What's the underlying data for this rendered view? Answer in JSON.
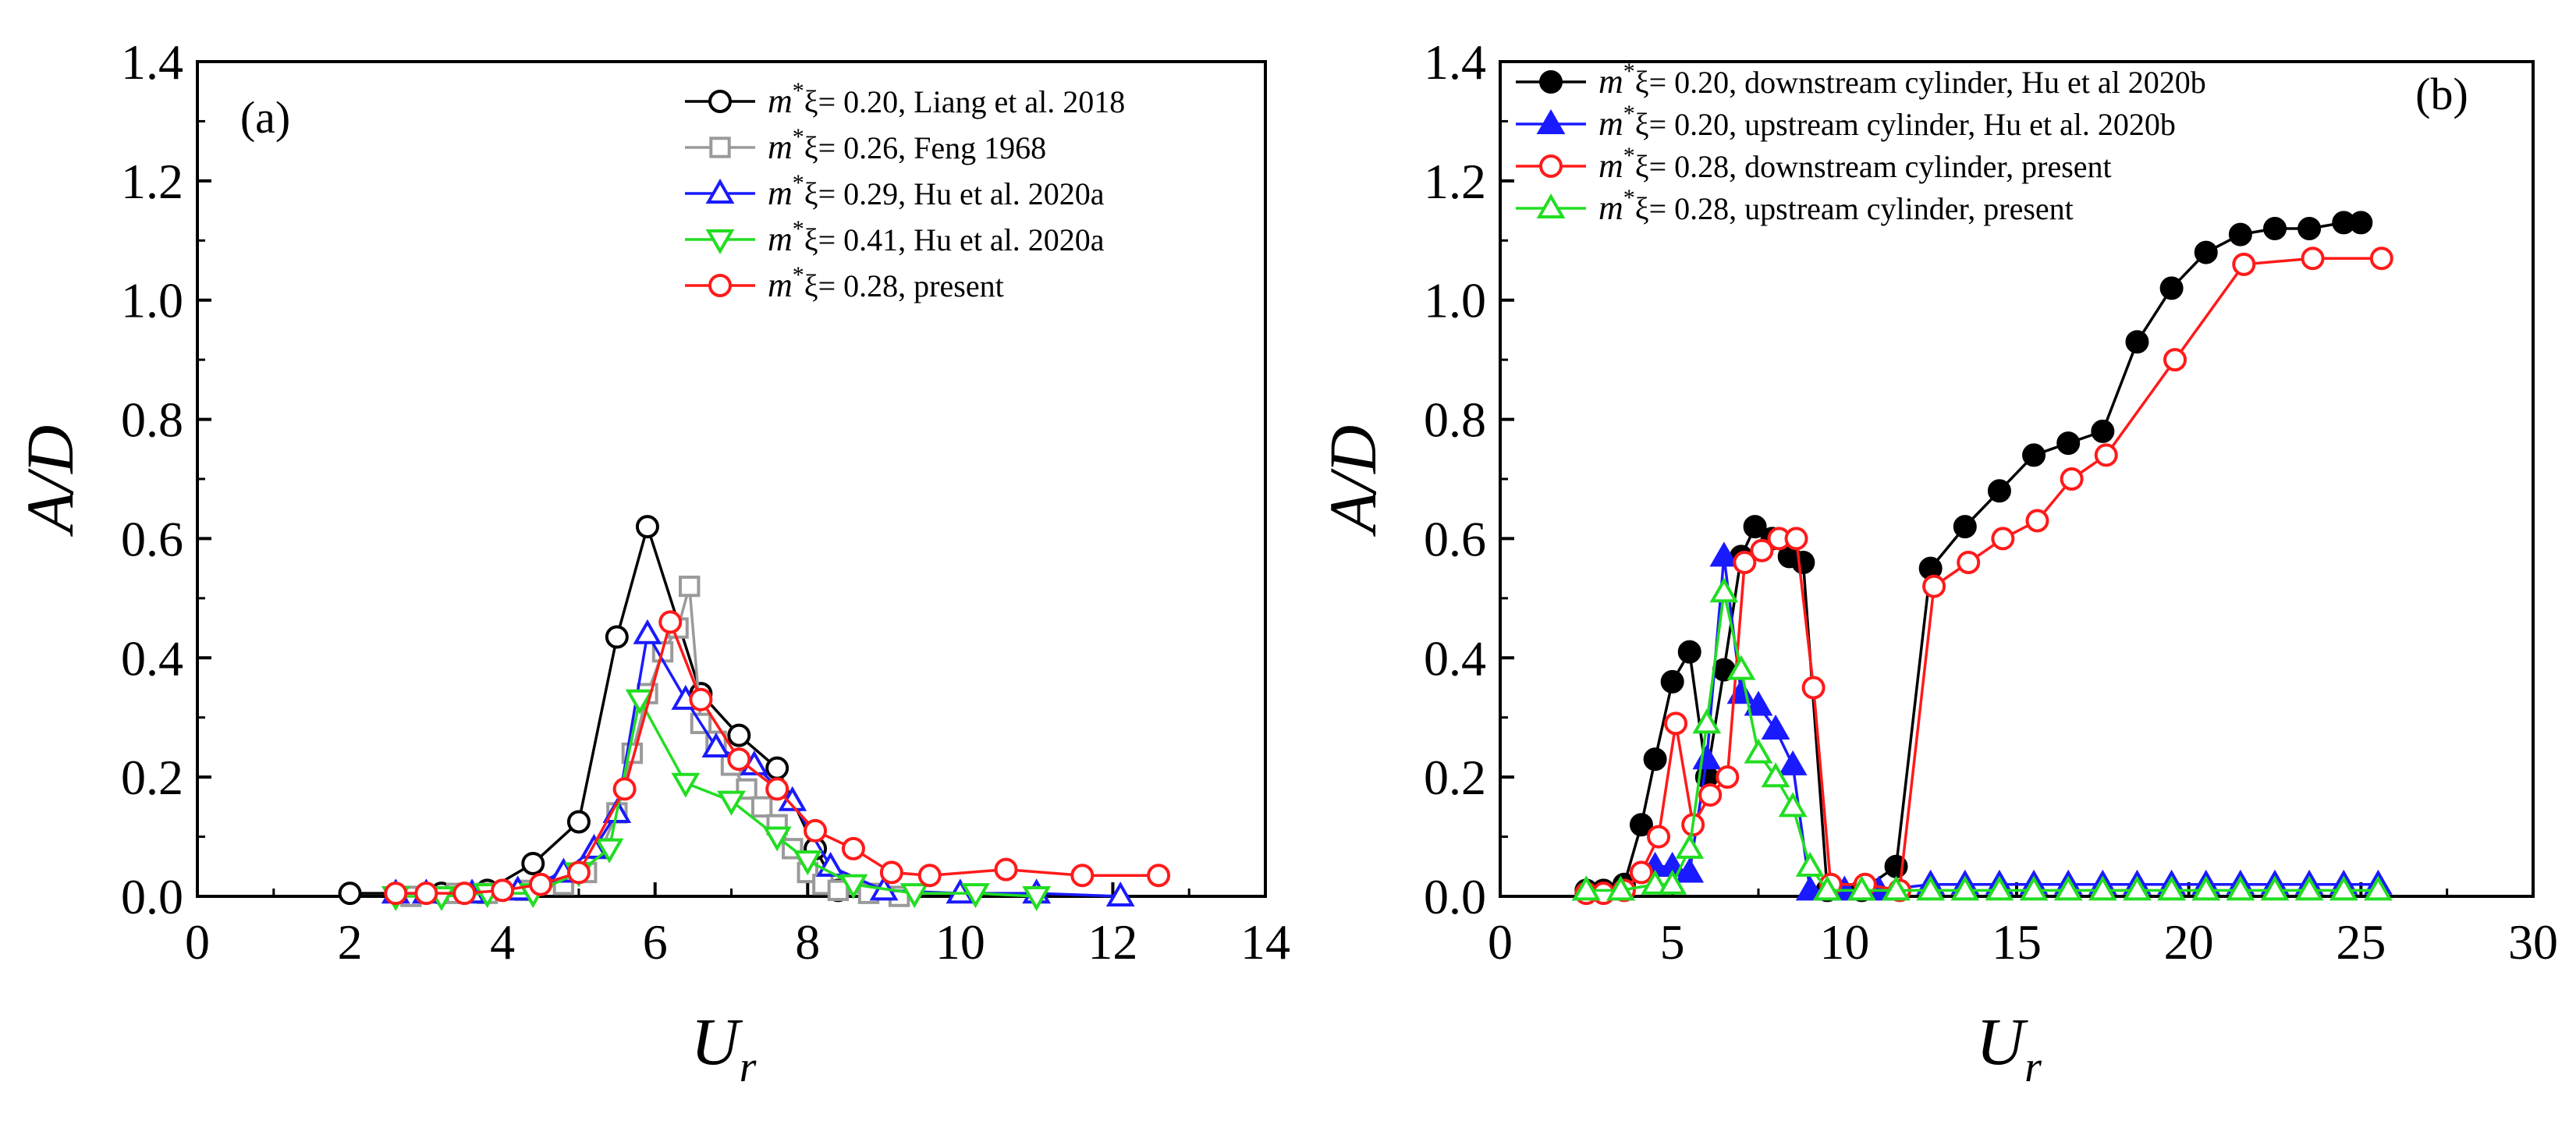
{
  "colors": {
    "black": "#000000",
    "gray": "#9a9a9a",
    "blue": "#1a1aff",
    "green": "#22dd22",
    "red": "#ff1a1a"
  },
  "chart_data": [
    {
      "type": "line",
      "panel_label": "(a)",
      "xlabel": "U",
      "xlabel_sub": "r",
      "ylabel": "A/D",
      "xlim": [
        0,
        14
      ],
      "ylim": [
        0,
        1.4
      ],
      "x_ticks": [
        "0",
        "2",
        "4",
        "6",
        "8",
        "10",
        "12",
        "14"
      ],
      "y_ticks": [
        "0.0",
        "0.2",
        "0.4",
        "0.6",
        "0.8",
        "1.0",
        "1.2",
        "1.4"
      ],
      "legend_position": "top-right",
      "series": [
        {
          "name": "m*ξ = 0.20, Liang et al. 2018",
          "legend_prefix": "m",
          "legend_sup": "*",
          "legend_label": "ξ= 0.20, Liang et al. 2018",
          "color": "#000000",
          "marker": "circle-open",
          "x": [
            2.0,
            3.2,
            3.8,
            4.4,
            5.0,
            5.5,
            5.9,
            6.6,
            7.1,
            7.6,
            8.1,
            8.4
          ],
          "y": [
            0.005,
            0.005,
            0.01,
            0.055,
            0.125,
            0.435,
            0.62,
            0.34,
            0.27,
            0.215,
            0.08,
            0.01
          ]
        },
        {
          "name": "m*ξ = 0.26, Feng 1968",
          "legend_prefix": "m",
          "legend_sup": "*",
          "legend_label": "ξ= 0.26, Feng 1968",
          "color": "#9a9a9a",
          "marker": "square-open",
          "x": [
            2.8,
            3.4,
            3.8,
            4.3,
            4.8,
            5.1,
            5.3,
            5.5,
            5.7,
            5.9,
            6.1,
            6.3,
            6.45,
            6.6,
            6.8,
            7.0,
            7.2,
            7.4,
            7.6,
            7.8,
            8.0,
            8.2,
            8.4,
            8.8,
            9.2
          ],
          "y": [
            0.0,
            0.005,
            0.005,
            0.01,
            0.02,
            0.04,
            0.08,
            0.14,
            0.24,
            0.34,
            0.41,
            0.45,
            0.52,
            0.29,
            0.26,
            0.22,
            0.18,
            0.15,
            0.12,
            0.08,
            0.04,
            0.02,
            0.01,
            0.005,
            0.0
          ]
        },
        {
          "name": "m*ξ = 0.29, Hu et al. 2020a",
          "legend_prefix": "m",
          "legend_sup": "*",
          "legend_label": "ξ= 0.29, Hu et al. 2020a",
          "color": "#1a1aff",
          "marker": "triangle-up-open",
          "x": [
            2.6,
            3.0,
            3.6,
            4.2,
            4.8,
            5.2,
            5.5,
            5.9,
            6.4,
            6.8,
            7.3,
            7.8,
            8.3,
            9.0,
            10.0,
            11.0,
            12.1
          ],
          "y": [
            0.005,
            0.005,
            0.005,
            0.01,
            0.04,
            0.08,
            0.14,
            0.44,
            0.33,
            0.25,
            0.22,
            0.16,
            0.05,
            0.01,
            0.005,
            0.005,
            0.0
          ]
        },
        {
          "name": "m*ξ = 0.41, Hu et al. 2020a",
          "legend_prefix": "m",
          "legend_sup": "*",
          "legend_label": "ξ= 0.41, Hu et al. 2020a",
          "color": "#22dd22",
          "marker": "triangle-down-open",
          "x": [
            2.6,
            3.2,
            3.8,
            4.4,
            5.0,
            5.4,
            5.8,
            6.4,
            7.0,
            7.6,
            8.0,
            8.6,
            9.4,
            10.2,
            11.0
          ],
          "y": [
            0.0,
            0.0,
            0.005,
            0.005,
            0.04,
            0.08,
            0.33,
            0.19,
            0.16,
            0.1,
            0.06,
            0.02,
            0.005,
            0.005,
            0.0
          ]
        },
        {
          "name": "m*ξ = 0.28, present",
          "legend_prefix": "m",
          "legend_sup": "*",
          "legend_label": "ξ= 0.28, present",
          "color": "#ff1a1a",
          "marker": "circle-open",
          "x": [
            2.6,
            3.0,
            3.5,
            4.0,
            4.5,
            5.0,
            5.6,
            6.2,
            6.6,
            7.1,
            7.6,
            8.1,
            8.6,
            9.1,
            9.6,
            10.6,
            11.6,
            12.6
          ],
          "y": [
            0.005,
            0.005,
            0.005,
            0.01,
            0.02,
            0.04,
            0.18,
            0.46,
            0.33,
            0.23,
            0.18,
            0.11,
            0.08,
            0.04,
            0.035,
            0.045,
            0.035,
            0.035
          ]
        }
      ]
    },
    {
      "type": "line",
      "panel_label": "(b)",
      "xlabel": "U",
      "xlabel_sub": "r",
      "ylabel": "A/D",
      "xlim": [
        0,
        30
      ],
      "ylim": [
        0,
        1.4
      ],
      "x_ticks": [
        "0",
        "5",
        "10",
        "15",
        "20",
        "25",
        "30"
      ],
      "y_ticks": [
        "0.0",
        "0.2",
        "0.4",
        "0.6",
        "0.8",
        "1.0",
        "1.2",
        "1.4"
      ],
      "legend_position": "top-left",
      "series": [
        {
          "name": "m*ξ = 0.20, downstream cylinder, Hu et al 2020b",
          "legend_prefix": "m",
          "legend_sup": "*",
          "legend_label": "ξ= 0.20, downstream cylinder, Hu et al 2020b",
          "color": "#000000",
          "marker": "circle-filled",
          "x": [
            2.5,
            3.0,
            3.6,
            4.1,
            4.5,
            5.0,
            5.5,
            6.0,
            6.5,
            7.0,
            7.4,
            7.9,
            8.4,
            8.8,
            9.5,
            10.5,
            11.5,
            12.5,
            13.5,
            14.5,
            15.5,
            16.5,
            17.5,
            18.5,
            19.5,
            20.5,
            21.5,
            22.5,
            23.5,
            24.5,
            25.0
          ],
          "y": [
            0.01,
            0.01,
            0.02,
            0.12,
            0.23,
            0.36,
            0.41,
            0.2,
            0.38,
            0.57,
            0.62,
            0.6,
            0.57,
            0.56,
            0.01,
            0.01,
            0.05,
            0.55,
            0.62,
            0.68,
            0.74,
            0.76,
            0.78,
            0.93,
            1.02,
            1.08,
            1.11,
            1.12,
            1.12,
            1.13,
            1.13
          ]
        },
        {
          "name": "m*ξ = 0.20, upstream cylinder, Hu et al. 2020b",
          "legend_prefix": "m",
          "legend_sup": "*",
          "legend_label": "ξ= 0.20, upstream cylinder, Hu et al. 2020b",
          "color": "#1a1aff",
          "marker": "triangle-up-filled",
          "x": [
            2.5,
            3.5,
            4.5,
            5.0,
            5.5,
            6.0,
            6.5,
            7.0,
            7.5,
            8.0,
            8.5,
            9.0,
            10.0,
            11.0,
            12.5,
            13.5,
            14.5,
            15.5,
            16.5,
            17.5,
            18.5,
            19.5,
            20.5,
            21.5,
            22.5,
            23.5,
            24.5,
            25.5
          ],
          "y": [
            0.01,
            0.01,
            0.05,
            0.05,
            0.04,
            0.23,
            0.57,
            0.34,
            0.32,
            0.28,
            0.22,
            0.01,
            0.01,
            0.01,
            0.02,
            0.02,
            0.02,
            0.02,
            0.02,
            0.02,
            0.02,
            0.02,
            0.02,
            0.02,
            0.02,
            0.02,
            0.02,
            0.02
          ]
        },
        {
          "name": "m*ξ = 0.28, downstream cylinder, present",
          "legend_prefix": "m",
          "legend_sup": "*",
          "legend_label": "ξ= 0.28, downstream cylinder, present",
          "color": "#ff1a1a",
          "marker": "circle-open",
          "x": [
            2.5,
            3.0,
            3.6,
            4.1,
            4.6,
            5.1,
            5.6,
            6.1,
            6.6,
            7.1,
            7.6,
            8.1,
            8.6,
            9.1,
            9.6,
            10.6,
            11.6,
            12.6,
            13.6,
            14.6,
            15.6,
            16.6,
            17.6,
            19.6,
            21.6,
            23.6,
            25.6
          ],
          "y": [
            0.005,
            0.005,
            0.01,
            0.04,
            0.1,
            0.29,
            0.12,
            0.17,
            0.2,
            0.56,
            0.58,
            0.6,
            0.6,
            0.35,
            0.02,
            0.02,
            0.01,
            0.52,
            0.56,
            0.6,
            0.63,
            0.7,
            0.74,
            0.9,
            1.06,
            1.07,
            1.07
          ]
        },
        {
          "name": "m*ξ = 0.28, upstream cylinder, present",
          "legend_prefix": "m",
          "legend_sup": "*",
          "legend_label": "ξ= 0.28, upstream cylinder, present",
          "color": "#22dd22",
          "marker": "triangle-up-open",
          "x": [
            2.5,
            3.5,
            4.5,
            5.0,
            5.5,
            6.0,
            6.5,
            7.0,
            7.5,
            8.0,
            8.5,
            9.0,
            9.5,
            10.5,
            11.5,
            12.5,
            13.5,
            14.5,
            15.5,
            16.5,
            17.5,
            18.5,
            19.5,
            20.5,
            21.5,
            22.5,
            23.5,
            24.5,
            25.5
          ],
          "y": [
            0.01,
            0.01,
            0.02,
            0.02,
            0.08,
            0.29,
            0.51,
            0.38,
            0.24,
            0.2,
            0.15,
            0.05,
            0.01,
            0.01,
            0.01,
            0.01,
            0.01,
            0.01,
            0.01,
            0.01,
            0.01,
            0.01,
            0.01,
            0.01,
            0.01,
            0.01,
            0.01,
            0.01,
            0.01
          ]
        }
      ]
    }
  ]
}
